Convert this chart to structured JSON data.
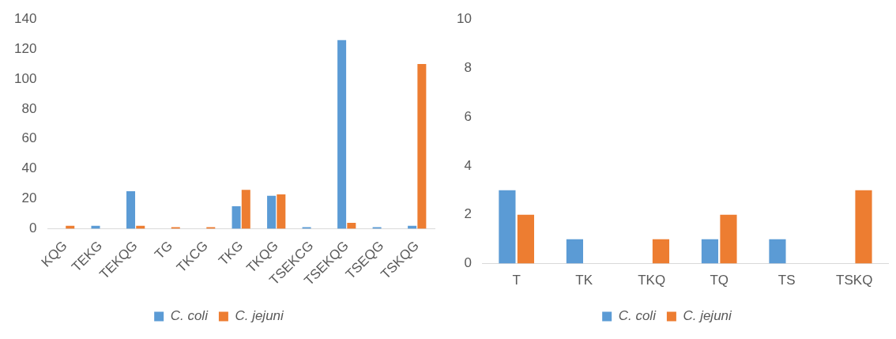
{
  "chart_data": [
    {
      "type": "bar",
      "categories": [
        "KQG",
        "TEKG",
        "TEKQG",
        "TG",
        "TKCG",
        "TKG",
        "TKQG",
        "TSEKCG",
        "TSEKQG",
        "TSEQG",
        "TSKQG"
      ],
      "series": [
        {
          "name": "C. coli",
          "color": "#5b9bd5",
          "values": [
            0,
            2,
            25,
            0,
            0,
            15,
            22,
            1,
            126,
            1,
            2
          ]
        },
        {
          "name": "C. jejuni",
          "color": "#ed7d31",
          "values": [
            2,
            0,
            2,
            1,
            1,
            26,
            23,
            0,
            4,
            0,
            110
          ]
        }
      ],
      "ylim": [
        0,
        140
      ],
      "yticks": [
        0,
        20,
        40,
        60,
        80,
        100,
        120,
        140
      ],
      "grid": false,
      "legend": "bottom"
    },
    {
      "type": "bar",
      "categories": [
        "T",
        "TK",
        "TKQ",
        "TQ",
        "TS",
        "TSKQ"
      ],
      "series": [
        {
          "name": "C. coli",
          "color": "#5b9bd5",
          "values": [
            3,
            1,
            0,
            1,
            1,
            0
          ]
        },
        {
          "name": "C. jejuni",
          "color": "#ed7d31",
          "values": [
            2,
            0,
            1,
            2,
            0,
            3
          ]
        }
      ],
      "ylim": [
        0,
        10
      ],
      "yticks": [
        0,
        2,
        4,
        6,
        8,
        10
      ],
      "grid": false,
      "legend": "bottom"
    }
  ]
}
